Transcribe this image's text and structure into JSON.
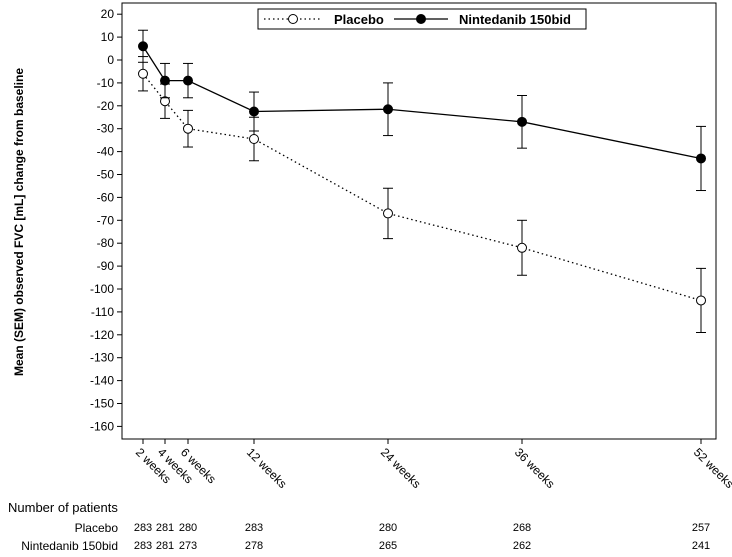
{
  "chart_data": {
    "type": "line",
    "ylabel": "Mean (SEM) observed FVC [mL] change from baseline",
    "ylim": [
      -165,
      22
    ],
    "yticks": [
      20,
      10,
      0,
      -10,
      -20,
      -30,
      -40,
      -50,
      -60,
      -70,
      -80,
      -90,
      -100,
      -110,
      -120,
      -130,
      -140,
      -150,
      -160
    ],
    "xticks": [
      {
        "week": 2,
        "label": "2 weeks"
      },
      {
        "week": 4,
        "label": "4 weeks"
      },
      {
        "week": 6,
        "label": "6 weeks"
      },
      {
        "week": 12,
        "label": "12 weeks"
      },
      {
        "week": 24,
        "label": "24 weeks"
      },
      {
        "week": 36,
        "label": "36 weeks"
      },
      {
        "week": 52,
        "label": "52 weeks"
      }
    ],
    "legend_position": "top-right",
    "series": [
      {
        "name": "Placebo",
        "style": "dotted",
        "marker": "open-circle",
        "points": [
          {
            "week": 2,
            "value": -6,
            "sem": 7.5
          },
          {
            "week": 4,
            "value": -18,
            "sem": 7.5
          },
          {
            "week": 6,
            "value": -30,
            "sem": 8
          },
          {
            "week": 12,
            "value": -34.5,
            "sem": 9.5
          },
          {
            "week": 24,
            "value": -67,
            "sem": 11
          },
          {
            "week": 36,
            "value": -82,
            "sem": 12
          },
          {
            "week": 52,
            "value": -105,
            "sem": 14
          }
        ]
      },
      {
        "name": "Nintedanib 150bid",
        "style": "solid",
        "marker": "filled-circle",
        "points": [
          {
            "week": 2,
            "value": 6,
            "sem": 7
          },
          {
            "week": 4,
            "value": -9,
            "sem": 7.5
          },
          {
            "week": 6,
            "value": -9,
            "sem": 7.5
          },
          {
            "week": 12,
            "value": -22.5,
            "sem": 8.5
          },
          {
            "week": 24,
            "value": -21.5,
            "sem": 11.5
          },
          {
            "week": 36,
            "value": -27,
            "sem": 11.5
          },
          {
            "week": 52,
            "value": -43,
            "sem": 14
          }
        ]
      }
    ]
  },
  "patients": {
    "title": "Number of patients",
    "rows": [
      {
        "label": "Placebo",
        "counts": [
          "283",
          "281",
          "280",
          "283",
          "280",
          "268",
          "257"
        ]
      },
      {
        "label": "Nintedanib 150bid",
        "counts": [
          "283",
          "281",
          "273",
          "278",
          "265",
          "262",
          "241"
        ]
      }
    ]
  }
}
